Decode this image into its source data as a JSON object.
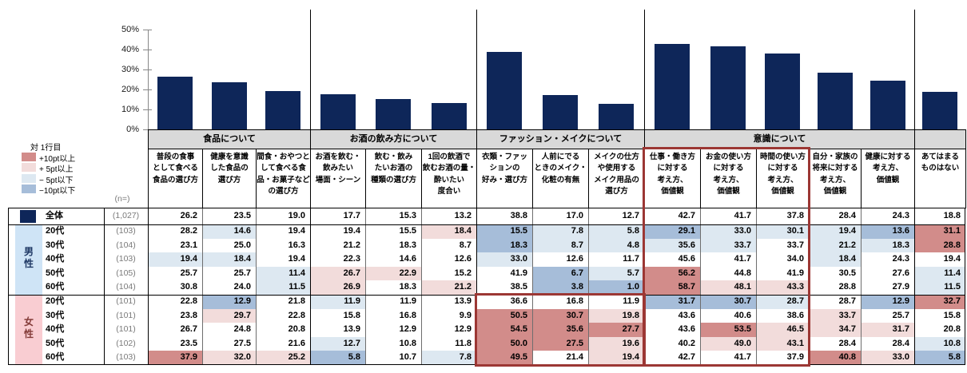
{
  "legend": {
    "title": "対 1行目",
    "items": [
      {
        "label": "+10pt以上",
        "key": "dark_pink"
      },
      {
        "label": "+  5pt以上",
        "key": "light_pink"
      },
      {
        "label": "−  5pt以下",
        "key": "light_blue"
      },
      {
        "label": "−10pt以下",
        "key": "dark_blue"
      }
    ],
    "n_label": "(n=)"
  },
  "colors": {
    "bar": "#0e2659",
    "band_bg": "#d9d9d9",
    "dark_pink": "#d28c8a",
    "light_pink": "#f2dcdb",
    "light_blue": "#dde8f1",
    "dark_blue": "#a6bdd9",
    "male_band": "#cfe4f6",
    "female_band": "#f9cdd2",
    "male_text": "#1f3864",
    "female_text": "#843c39",
    "red_box": "#9c3734"
  },
  "chart_data": {
    "type": "bar",
    "title": "",
    "xlabel": "",
    "ylabel": "",
    "ylim": [
      0,
      50
    ],
    "y_ticks": [
      "50%",
      "40%",
      "30%",
      "20%",
      "10%",
      "0%"
    ],
    "grid": false,
    "legend_position": "none",
    "categories": [
      "普段の食事として食べる食品の選び方",
      "健康を意識した食品の選び方",
      "間食・おやつとして食べる食品・お菓子などの選び方",
      "お酒を飲む・飲みたい場面・シーン",
      "飲む・飲みたいお酒の種類の選び方",
      "1回の飲酒で飲むお酒の量・酔いたい度合い",
      "衣類・ファッションの好み・選び方",
      "人前にでるときのメイク・化粧の有無",
      "メイクの仕方や使用するメイク用品の選び方",
      "仕事・働き方に対する考え方、価値観",
      "お金の使い方に対する考え方、価値観",
      "時間の使い方に対する考え方、価値観",
      "自分・家族の将来に対する考え方、価値観",
      "健康に対する考え方、価値観",
      "あてはまるものはない"
    ],
    "values": [
      26.2,
      23.5,
      19.0,
      17.7,
      15.3,
      13.2,
      38.8,
      17.0,
      12.7,
      42.7,
      41.7,
      37.8,
      28.4,
      24.3,
      18.8
    ]
  },
  "table": {
    "groups": [
      {
        "label": "食品について",
        "cols": 3
      },
      {
        "label": "お酒の飲み方について",
        "cols": 3
      },
      {
        "label": "ファッション・メイクについて",
        "cols": 3
      },
      {
        "label": "意識について",
        "cols": 5
      },
      {
        "label": "",
        "cols": 1
      }
    ],
    "columns": [
      "普段の食事\nとして食べる\n食品の選び方",
      "健康を意識\nした食品の\n選び方",
      "間食・おやつと\nして食べる食\n品・お菓子など\nの選び方",
      "お酒を飲む・\n飲みたい\n場面・シーン",
      "飲む・飲み\nたいお酒の\n種類の選び方",
      "1回の飲酒で\n飲むお酒の量・\n酔いたい\n度合い",
      "衣類・ファッ\nションの\n好み・選び方",
      "人前にでる\nときのメイク・\n化粧の有無",
      "メイクの仕方\nや使用する\nメイク用品の\n選び方",
      "仕事・働き方\nに対する\n考え方、\n価値観",
      "お金の使い方\nに対する\n考え方、\n価値観",
      "時間の使い方\nに対する\n考え方、\n価値観",
      "自分・家族の\n将来に対する\n考え方、\n価値観",
      "健康に対する\n考え方、\n価値観",
      "あてはまる\nものはない"
    ],
    "blocks": [
      {
        "name": "total",
        "band": "",
        "rows": [
          {
            "label": "全体",
            "n": "(1,027)",
            "values": [
              26.2,
              23.5,
              19.0,
              17.7,
              15.3,
              13.2,
              38.8,
              17.0,
              12.7,
              42.7,
              41.7,
              37.8,
              28.4,
              24.3,
              18.8
            ]
          }
        ]
      },
      {
        "name": "male",
        "band": "男\n性",
        "rows": [
          {
            "label": "20代",
            "n": "(103)",
            "values": [
              28.2,
              14.6,
              19.4,
              19.4,
              15.5,
              18.4,
              15.5,
              7.8,
              5.8,
              29.1,
              33.0,
              30.1,
              19.4,
              13.6,
              31.1
            ]
          },
          {
            "label": "30代",
            "n": "(104)",
            "values": [
              23.1,
              25.0,
              16.3,
              21.2,
              18.3,
              8.7,
              18.3,
              8.7,
              4.8,
              35.6,
              33.7,
              33.7,
              21.2,
              18.3,
              28.8
            ]
          },
          {
            "label": "40代",
            "n": "(103)",
            "values": [
              19.4,
              18.4,
              19.4,
              22.3,
              14.6,
              12.6,
              33.0,
              12.6,
              11.7,
              45.6,
              41.7,
              34.0,
              18.4,
              24.3,
              19.4
            ]
          },
          {
            "label": "50代",
            "n": "(105)",
            "values": [
              25.7,
              25.7,
              11.4,
              26.7,
              22.9,
              15.2,
              41.9,
              6.7,
              5.7,
              56.2,
              44.8,
              41.9,
              30.5,
              27.6,
              11.4
            ]
          },
          {
            "label": "60代",
            "n": "(104)",
            "values": [
              30.8,
              24.0,
              11.5,
              26.9,
              18.3,
              21.2,
              38.5,
              3.8,
              1.0,
              58.7,
              48.1,
              43.3,
              28.8,
              27.9,
              11.5
            ]
          }
        ]
      },
      {
        "name": "female",
        "band": "女\n性",
        "rows": [
          {
            "label": "20代",
            "n": "(101)",
            "values": [
              22.8,
              12.9,
              21.8,
              11.9,
              11.9,
              13.9,
              36.6,
              16.8,
              11.9,
              31.7,
              30.7,
              28.7,
              28.7,
              12.9,
              32.7
            ]
          },
          {
            "label": "30代",
            "n": "(101)",
            "values": [
              23.8,
              29.7,
              22.8,
              15.8,
              16.8,
              9.9,
              50.5,
              30.7,
              19.8,
              43.6,
              40.6,
              38.6,
              33.7,
              25.7,
              15.8
            ]
          },
          {
            "label": "40代",
            "n": "(101)",
            "values": [
              26.7,
              24.8,
              20.8,
              13.9,
              12.9,
              12.9,
              54.5,
              35.6,
              27.7,
              43.6,
              53.5,
              46.5,
              34.7,
              31.7,
              20.8
            ]
          },
          {
            "label": "50代",
            "n": "(102)",
            "values": [
              23.5,
              27.5,
              21.6,
              12.7,
              10.8,
              11.8,
              50.0,
              27.5,
              19.6,
              40.2,
              49.0,
              43.1,
              28.4,
              28.4,
              10.8
            ]
          },
          {
            "label": "60代",
            "n": "(103)",
            "values": [
              37.9,
              32.0,
              25.2,
              5.8,
              10.7,
              7.8,
              49.5,
              21.4,
              19.4,
              42.7,
              41.7,
              37.9,
              40.8,
              33.0,
              5.8
            ]
          }
        ]
      }
    ]
  }
}
